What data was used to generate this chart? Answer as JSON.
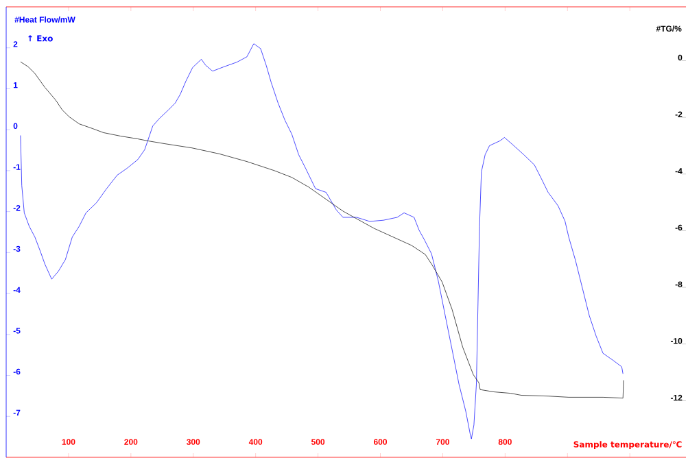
{
  "chart_data": {
    "type": "line",
    "xlabel": "Sample temperature/℃",
    "ylabel": "#Heat Flow/mW",
    "y2label": "#TG/%",
    "annotations": [
      "↑ Exo"
    ],
    "xlim": [
      0,
      1090
    ],
    "xticks": [
      100,
      200,
      300,
      400,
      500,
      600,
      700,
      800,
      {
        "value": 900,
        "label": null
      },
      {
        "value": 1000,
        "label": null
      }
    ],
    "ylim": [
      -8,
      3
    ],
    "yticks": [
      -7,
      -6,
      -5,
      -4,
      -3,
      -2,
      -1,
      0,
      1,
      2
    ],
    "y2lim": [
      -14,
      1.9
    ],
    "y2ticks": [
      -12,
      -10,
      -8,
      -6,
      -4,
      -2,
      0
    ],
    "series": [
      {
        "color": "#0000ff",
        "x": [
          23,
          25,
          29,
          37,
          46,
          55,
          62,
          73,
          84,
          95,
          106,
          117,
          128,
          145,
          161,
          178,
          194,
          211,
          222,
          227,
          235,
          246,
          260,
          271,
          279,
          288,
          299,
          313,
          320,
          331,
          348,
          370,
          386,
          397,
          408,
          417,
          425,
          436,
          447,
          458,
          469,
          480,
          496,
          513,
          529,
          540,
          562,
          583,
          605,
          627,
          638,
          654,
          662,
          671,
          682,
          693,
          704,
          715,
          726,
          737,
          744,
          746,
          750,
          754,
          759,
          762,
          768,
          775,
          792,
          799,
          814,
          830,
          847,
          858,
          869,
          885,
          896,
          902,
          913,
          924,
          935,
          946,
          957,
          973,
          987,
          989
        ],
        "values": [
          -0.14,
          -1.36,
          -2.03,
          -2.36,
          -2.62,
          -2.98,
          -3.28,
          -3.65,
          -3.45,
          -3.17,
          -2.62,
          -2.36,
          -2.03,
          -1.78,
          -1.44,
          -1.11,
          -0.94,
          -0.73,
          -0.49,
          -0.27,
          0.09,
          0.28,
          0.48,
          0.65,
          0.86,
          1.18,
          1.52,
          1.72,
          1.57,
          1.43,
          1.53,
          1.65,
          1.78,
          2.1,
          1.98,
          1.57,
          1.15,
          0.65,
          0.23,
          -0.11,
          -0.61,
          -0.94,
          -1.44,
          -1.53,
          -1.95,
          -2.14,
          -2.14,
          -2.24,
          -2.21,
          -2.14,
          -2.03,
          -2.14,
          -2.45,
          -2.7,
          -3.03,
          -3.7,
          -4.54,
          -5.37,
          -6.21,
          -6.88,
          -7.43,
          -7.55,
          -7.21,
          -6.21,
          -2.36,
          -1.03,
          -0.61,
          -0.39,
          -0.27,
          -0.19,
          -0.39,
          -0.61,
          -0.86,
          -1.19,
          -1.53,
          -1.86,
          -2.23,
          -2.62,
          -3.2,
          -3.87,
          -4.54,
          -5.04,
          -5.46,
          -5.63,
          -5.79,
          -5.96
        ]
      },
      {
        "color": "#000000",
        "axis": "y2",
        "x": [
          23,
          35,
          46,
          62,
          79,
          90,
          101,
          117,
          139,
          156,
          183,
          211,
          227,
          254,
          298,
          342,
          386,
          430,
          458,
          485,
          518,
          540,
          562,
          590,
          617,
          650,
          672,
          683,
          699,
          715,
          732,
          749,
          758,
          760,
          782,
          809,
          826,
          870,
          902,
          957,
          989,
          990
        ],
        "values": [
          -0.04,
          -0.21,
          -0.45,
          -0.94,
          -1.38,
          -1.74,
          -1.98,
          -2.23,
          -2.4,
          -2.54,
          -2.66,
          -2.76,
          -2.83,
          -2.93,
          -3.08,
          -3.29,
          -3.56,
          -3.88,
          -4.12,
          -4.46,
          -4.97,
          -5.31,
          -5.58,
          -5.92,
          -6.19,
          -6.52,
          -6.84,
          -7.21,
          -7.81,
          -8.78,
          -10.11,
          -11.08,
          -11.37,
          -11.61,
          -11.69,
          -11.74,
          -11.81,
          -11.84,
          -11.88,
          -11.88,
          -11.91,
          -11.28
        ]
      }
    ]
  }
}
